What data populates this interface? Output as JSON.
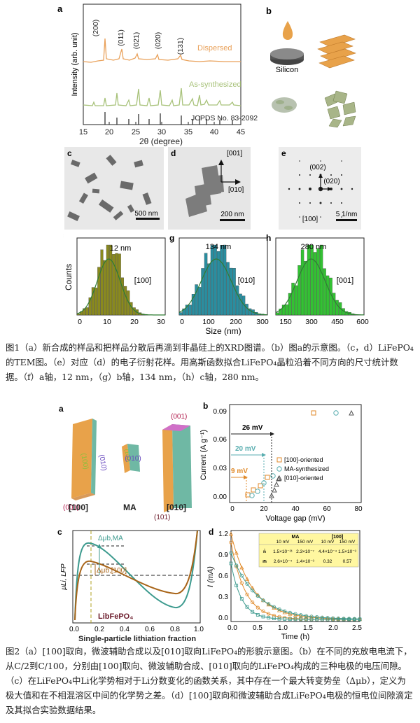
{
  "figure1": {
    "panel_labels": {
      "a": "a",
      "b": "b",
      "c": "c",
      "d": "d",
      "e": "e",
      "f": "f",
      "g": "g",
      "h": "h"
    },
    "xrd": {
      "ylabel": "Intensity (arb. unit)",
      "xlabel": "2θ (degree)",
      "xticks": [
        "15",
        "20",
        "25",
        "30",
        "35",
        "40",
        "45"
      ],
      "peaks": [
        "(200)",
        "(011)",
        "(021)",
        "(020)",
        "(131)"
      ],
      "dispersed_label": "Dispersed",
      "synth_label": "As-synthesized",
      "jcpds_label": "JCPDS No. 83-2092"
    },
    "schematic": {
      "silicon_label": "Silicon"
    },
    "tem": {
      "c_scale": "500 nm",
      "d_dir1": "[001]",
      "d_dir2": "[010]",
      "d_scale": "200 nm",
      "e_spot1": "(002)",
      "e_spot2": "(020)",
      "e_zone": "[100]",
      "e_scale": "5 1/nm"
    },
    "histograms": {
      "ylabel": "Counts",
      "xlabel": "Size (nm)",
      "f": {
        "size": "12 nm",
        "dir": "[100]",
        "xticks": [
          "0",
          "10",
          "20",
          "30"
        ]
      },
      "g": {
        "size": "134 nm",
        "dir": "[010]",
        "xticks": [
          "0",
          "100",
          "200",
          "300"
        ]
      },
      "h": {
        "size": "280 nm",
        "dir": "[001]",
        "xticks": [
          "150",
          "300",
          "450",
          "600"
        ]
      }
    }
  },
  "caption1": "图1（a）新合成的样品和把样品分散后再滴到非晶硅上的XRD图谱。（b）图a的示意图。（c，d）LiFePO₄的TEM图。（e）对应（d）的电子衍射花样。用高斯函数拟合LiFePO₄晶粒沿着不同方向的尺寸统计数据。（f）a轴，12 nm，（g）b轴，134 nm，（h）c轴，280 nm。",
  "figure2": {
    "panel_labels": {
      "a": "a",
      "b": "b",
      "c": "c",
      "d": "d"
    },
    "crystals": {
      "face100": "(100)",
      "face010": "(010)",
      "face001": "(001)",
      "ma100": "(100)",
      "ma010": "(010)",
      "o010_001": "(001)",
      "o010_101": "(101)",
      "label_100": "[100]",
      "label_ma": "MA",
      "label_010": "[010]"
    },
    "voltage": {
      "ylabel": "Current (A g⁻¹)",
      "xlabel": "Voltage gap (mV)",
      "xticks": [
        "0",
        "20",
        "40",
        "60",
        "80"
      ],
      "yticks": [
        "0.00",
        "0.03",
        "0.06",
        "0.09"
      ],
      "gap26": "26 mV",
      "gap20": "20 mV",
      "gap9": "9 mV",
      "legend": [
        "[100]-oriented",
        "MA-synthesized",
        "[010]-oriented"
      ]
    },
    "potential": {
      "ylabel": "μLi, LFP",
      "xlabel": "Single-particle lithiation fraction",
      "xticks": [
        "0.0",
        "0.2",
        "0.4",
        "0.6",
        "0.8",
        "1.0"
      ],
      "dmu_ma": "Δμb,MA",
      "dmu_100": "Δμb,[100]",
      "formula": "LibFePO₄"
    },
    "relax": {
      "ylabel": "I (mA)",
      "xlabel": "Time (h)",
      "xticks": [
        "0.0",
        "0.5",
        "1.0",
        "1.5",
        "2.0",
        "2.5"
      ],
      "yticks": [
        "0.0",
        "0.3",
        "0.6",
        "0.9",
        "1.2"
      ],
      "table": {
        "head_ma": "MA",
        "head_100": "[100]",
        "sub": [
          "10 mV",
          "150 mV",
          "10 mV",
          "150 mV"
        ],
        "row1_label": "n̄",
        "row1": [
          "1.5×10⁻²¹",
          "2.3×10⁻⁷",
          "4.4×10⁻⁴",
          "1.5×10⁻³"
        ],
        "row2_label": "m̄",
        "row2": [
          "2.6×10⁻⁴",
          "1.4×10⁻³",
          "0.32",
          "0.57"
        ]
      }
    }
  },
  "caption2": "图2（a）[100]取向，微波辅助合成以及[010]取向LiFePO₄的形貌示意图。（b）在不同的充放电电流下，从C/2到C/100，分别由[100]取向、微波辅助合成、[010]取向的LiFePO₄构成的三种电极的电压间隙。（c）在LiFePO₄中Li化学势相对于Li分数变化的函数关系，其中存在一个最大转变势垒（Δμb），定义为极大值和在不相混溶区中间的化学势之差。（d）[100]取向和微波辅助合成LiFePO₄电极的恒电位间隙滴定及其拟合实验数据结果。"
}
